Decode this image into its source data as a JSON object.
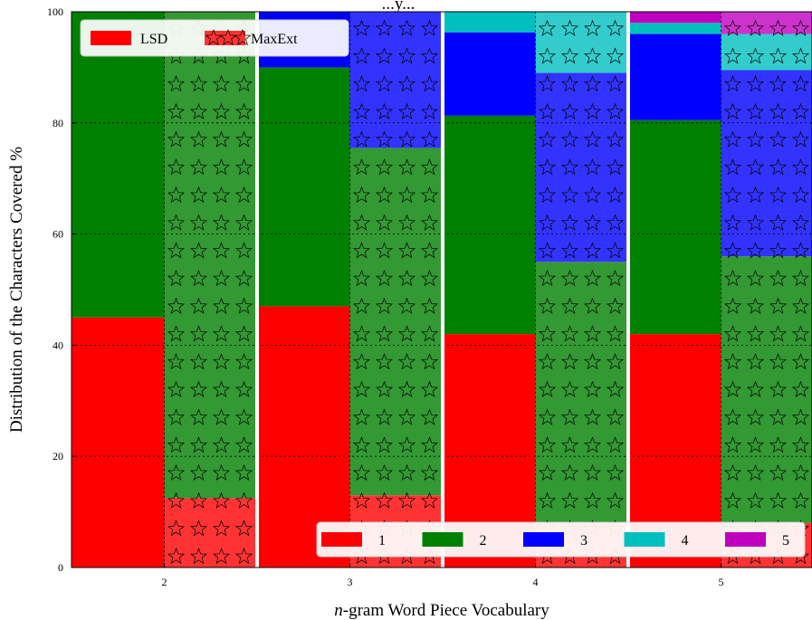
{
  "chart_data": {
    "type": "bar",
    "stacked": true,
    "title": "...y...",
    "xlabel": "n-gram Word Piece Vocabulary",
    "xlabel_italic_part": "n",
    "xlabel_rest": "-gram Word Piece Vocabulary",
    "ylabel": "Distribution of the Characters Covered %",
    "ylim": [
      0,
      100
    ],
    "yticks": [
      0,
      20,
      40,
      60,
      80,
      100
    ],
    "grid": true,
    "categories": [
      "2",
      "3",
      "4",
      "5"
    ],
    "methods": [
      {
        "name": "LSD",
        "pattern": "solid"
      },
      {
        "name": "MaxExt",
        "pattern": "stars"
      }
    ],
    "series": [
      {
        "name": "1",
        "color": "#ff0000",
        "values": {
          "LSD": [
            45,
            47,
            42,
            42
          ],
          "MaxExt": [
            12.5,
            13,
            8,
            8
          ]
        }
      },
      {
        "name": "2",
        "color": "#008000",
        "values": {
          "LSD": [
            55,
            43,
            39.3,
            38.5
          ],
          "MaxExt": [
            87.5,
            62.5,
            47,
            48
          ]
        }
      },
      {
        "name": "3",
        "color": "#0000ff",
        "values": {
          "LSD": [
            0,
            10,
            15,
            15.5
          ],
          "MaxExt": [
            0,
            24.5,
            34,
            33.5
          ]
        }
      },
      {
        "name": "4",
        "color": "#00bfbf",
        "values": {
          "LSD": [
            0,
            0,
            3.7,
            2
          ],
          "MaxExt": [
            0,
            0,
            11,
            6.5
          ]
        }
      },
      {
        "name": "5",
        "color": "#bf00bf",
        "values": {
          "LSD": [
            0,
            0,
            0,
            2
          ],
          "MaxExt": [
            0,
            0,
            0,
            4
          ]
        }
      }
    ],
    "method_legend_position": "upper-left",
    "series_legend_position": "lower-right"
  }
}
